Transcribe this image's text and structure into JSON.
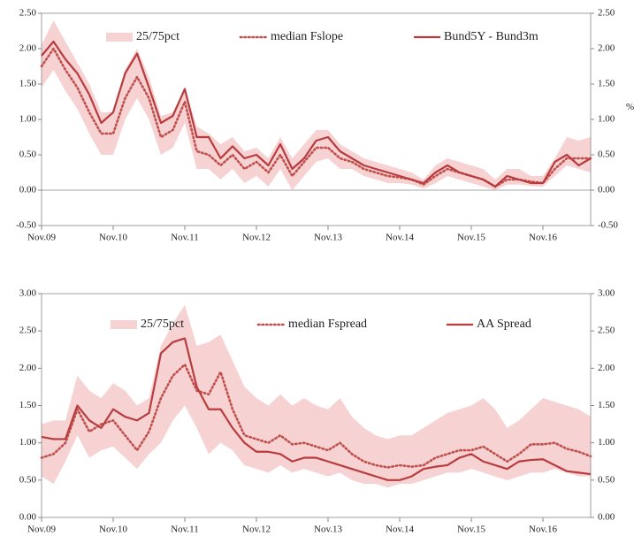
{
  "chart_data": [
    {
      "type": "line",
      "categories": [
        "Nov.09",
        null,
        null,
        null,
        null,
        null,
        "Nov.10",
        null,
        null,
        null,
        null,
        null,
        "Nov.11",
        null,
        null,
        null,
        null,
        null,
        "Nov.12",
        null,
        null,
        null,
        null,
        null,
        "Nov.13",
        null,
        null,
        null,
        null,
        null,
        "Nov.14",
        null,
        null,
        null,
        null,
        null,
        "Nov.15",
        null,
        null,
        null,
        null,
        null,
        "Nov.16",
        null,
        null,
        null,
        null
      ],
      "band": {
        "name": "25/75pct",
        "color": "#f6d2d2",
        "low": [
          1.45,
          1.7,
          1.4,
          1.15,
          0.8,
          0.5,
          0.5,
          1.0,
          1.3,
          1.0,
          0.5,
          0.6,
          0.95,
          0.3,
          0.3,
          0.15,
          0.3,
          0.1,
          0.2,
          0.05,
          0.3,
          0.0,
          0.2,
          0.4,
          0.45,
          0.3,
          0.3,
          0.2,
          0.15,
          0.1,
          0.1,
          0.08,
          0.02,
          0.1,
          0.2,
          0.15,
          0.1,
          0.05,
          0.0,
          0.08,
          0.08,
          0.06,
          0.05,
          0.2,
          0.35,
          0.3,
          0.25
        ],
        "high": [
          2.05,
          2.4,
          2.1,
          1.8,
          1.5,
          1.1,
          1.1,
          1.7,
          2.0,
          1.6,
          1.05,
          1.1,
          1.45,
          0.9,
          0.8,
          0.65,
          0.75,
          0.55,
          0.6,
          0.45,
          0.75,
          0.45,
          0.65,
          0.85,
          0.85,
          0.65,
          0.55,
          0.45,
          0.4,
          0.35,
          0.3,
          0.25,
          0.15,
          0.35,
          0.45,
          0.4,
          0.35,
          0.3,
          0.15,
          0.3,
          0.3,
          0.2,
          0.2,
          0.45,
          0.75,
          0.7,
          0.75
        ]
      },
      "series": [
        {
          "name": "median Fslope",
          "color": "#c0504d",
          "style": "dotted",
          "values": [
            1.75,
            2.0,
            1.7,
            1.45,
            1.1,
            0.8,
            0.8,
            1.3,
            1.6,
            1.3,
            0.75,
            0.85,
            1.25,
            0.55,
            0.5,
            0.35,
            0.5,
            0.3,
            0.4,
            0.25,
            0.5,
            0.2,
            0.4,
            0.6,
            0.6,
            0.45,
            0.4,
            0.3,
            0.25,
            0.2,
            0.18,
            0.15,
            0.08,
            0.2,
            0.3,
            0.25,
            0.2,
            0.15,
            0.05,
            0.15,
            0.15,
            0.12,
            0.1,
            0.3,
            0.45,
            0.45,
            0.45
          ]
        },
        {
          "name": "Bund5Y - Bund3m",
          "color": "#b83b3e",
          "style": "solid",
          "values": [
            1.9,
            2.1,
            1.85,
            1.65,
            1.35,
            0.95,
            1.1,
            1.65,
            1.93,
            1.45,
            0.95,
            1.05,
            1.43,
            0.75,
            0.75,
            0.45,
            0.62,
            0.45,
            0.5,
            0.35,
            0.65,
            0.3,
            0.45,
            0.7,
            0.75,
            0.55,
            0.45,
            0.35,
            0.3,
            0.25,
            0.2,
            0.15,
            0.1,
            0.25,
            0.35,
            0.25,
            0.2,
            0.15,
            0.05,
            0.2,
            0.15,
            0.1,
            0.1,
            0.4,
            0.5,
            0.35,
            0.45
          ]
        }
      ],
      "ylim": [
        -0.5,
        2.5
      ],
      "yticks": [
        {
          "value": -0.5,
          "label": "-0.50"
        },
        {
          "value": 0,
          "label": "0.00"
        },
        {
          "value": 0.5,
          "label": "0.50"
        },
        {
          "value": 1,
          "label": "1.00"
        },
        {
          "value": 1.5,
          "label": "1.50"
        },
        {
          "value": 2,
          "label": "2.00"
        },
        {
          "value": 2.5,
          "label": "2.50"
        }
      ],
      "y2lim": [
        -0.5,
        2.5
      ],
      "y2ticks": [
        {
          "value": -0.5,
          "label": "-0.50"
        },
        {
          "value": 0,
          "label": "0.00"
        },
        {
          "value": 0.5,
          "label": "0.50"
        },
        {
          "value": 1,
          "label": "1.00"
        },
        {
          "value": 1.5,
          "label": "1.50"
        },
        {
          "value": 2,
          "label": "2.00"
        },
        {
          "value": 2.5,
          "label": "2.50"
        }
      ],
      "y2label": "%"
    },
    {
      "type": "line",
      "categories": [
        "Nov.09",
        null,
        null,
        null,
        null,
        null,
        "Nov.10",
        null,
        null,
        null,
        null,
        null,
        "Nov.11",
        null,
        null,
        null,
        null,
        null,
        "Nov.12",
        null,
        null,
        null,
        null,
        null,
        "Nov.13",
        null,
        null,
        null,
        null,
        null,
        "Nov.14",
        null,
        null,
        null,
        null,
        null,
        "Nov.15",
        null,
        null,
        null,
        null,
        null,
        "Nov.16",
        null,
        null,
        null,
        null
      ],
      "band": {
        "name": "25/75pct",
        "color": "#f6d2d2",
        "low": [
          0.55,
          0.45,
          0.75,
          1.1,
          0.8,
          0.9,
          0.95,
          0.8,
          0.65,
          0.85,
          1.0,
          1.3,
          1.5,
          1.2,
          0.85,
          1.0,
          0.9,
          0.7,
          0.65,
          0.6,
          0.7,
          0.6,
          0.65,
          0.6,
          0.55,
          0.6,
          0.5,
          0.45,
          0.45,
          0.4,
          0.45,
          0.45,
          0.5,
          0.55,
          0.6,
          0.6,
          0.65,
          0.6,
          0.55,
          0.5,
          0.55,
          0.6,
          0.6,
          0.65,
          0.6,
          0.55,
          0.55
        ],
        "high": [
          1.25,
          1.3,
          1.3,
          1.9,
          1.7,
          1.6,
          1.8,
          1.7,
          1.5,
          1.6,
          2.3,
          2.6,
          2.85,
          2.3,
          2.35,
          2.45,
          2.1,
          1.75,
          1.6,
          1.5,
          1.65,
          1.5,
          1.6,
          1.5,
          1.45,
          1.6,
          1.35,
          1.2,
          1.1,
          1.05,
          1.1,
          1.1,
          1.2,
          1.3,
          1.4,
          1.45,
          1.5,
          1.6,
          1.45,
          1.2,
          1.3,
          1.45,
          1.6,
          1.55,
          1.5,
          1.45,
          1.35
        ]
      },
      "series": [
        {
          "name": "median Fspread",
          "color": "#c0504d",
          "style": "dotted",
          "values": [
            0.8,
            0.85,
            1.0,
            1.45,
            1.15,
            1.25,
            1.3,
            1.1,
            0.9,
            1.15,
            1.6,
            1.9,
            2.05,
            1.7,
            1.65,
            1.95,
            1.45,
            1.1,
            1.05,
            1.0,
            1.1,
            0.98,
            1.0,
            0.95,
            0.9,
            1.0,
            0.85,
            0.75,
            0.7,
            0.67,
            0.7,
            0.68,
            0.7,
            0.8,
            0.85,
            0.9,
            0.9,
            0.95,
            0.85,
            0.75,
            0.85,
            0.98,
            0.98,
            1.0,
            0.92,
            0.88,
            0.82
          ]
        },
        {
          "name": "AA Spread",
          "color": "#b83b3e",
          "style": "solid",
          "values": [
            1.08,
            1.05,
            1.05,
            1.5,
            1.3,
            1.2,
            1.45,
            1.35,
            1.3,
            1.4,
            2.2,
            2.35,
            2.4,
            1.75,
            1.45,
            1.45,
            1.2,
            1.0,
            0.88,
            0.88,
            0.85,
            0.75,
            0.8,
            0.8,
            0.75,
            0.7,
            0.65,
            0.6,
            0.55,
            0.5,
            0.5,
            0.55,
            0.65,
            0.68,
            0.7,
            0.8,
            0.85,
            0.75,
            0.7,
            0.65,
            0.75,
            0.77,
            0.78,
            0.7,
            0.62,
            0.6,
            0.58
          ]
        }
      ],
      "ylim": [
        0,
        3
      ],
      "yticks": [
        {
          "value": 0,
          "label": "0.00"
        },
        {
          "value": 0.5,
          "label": "0.50"
        },
        {
          "value": 1,
          "label": "1.00"
        },
        {
          "value": 1.5,
          "label": "1.50"
        },
        {
          "value": 2,
          "label": "2.00"
        },
        {
          "value": 2.5,
          "label": "2.50"
        },
        {
          "value": 3,
          "label": "3.00"
        }
      ],
      "y2lim": [
        0,
        3
      ],
      "y2ticks": [
        {
          "value": 0,
          "label": "0.00"
        },
        {
          "value": 0.5,
          "label": "0.50"
        },
        {
          "value": 1,
          "label": "1.00"
        },
        {
          "value": 1.5,
          "label": "1.50"
        },
        {
          "value": 2,
          "label": "2.00"
        },
        {
          "value": 2.5,
          "label": "2.50"
        },
        {
          "value": 3,
          "label": "3.00"
        }
      ]
    }
  ]
}
